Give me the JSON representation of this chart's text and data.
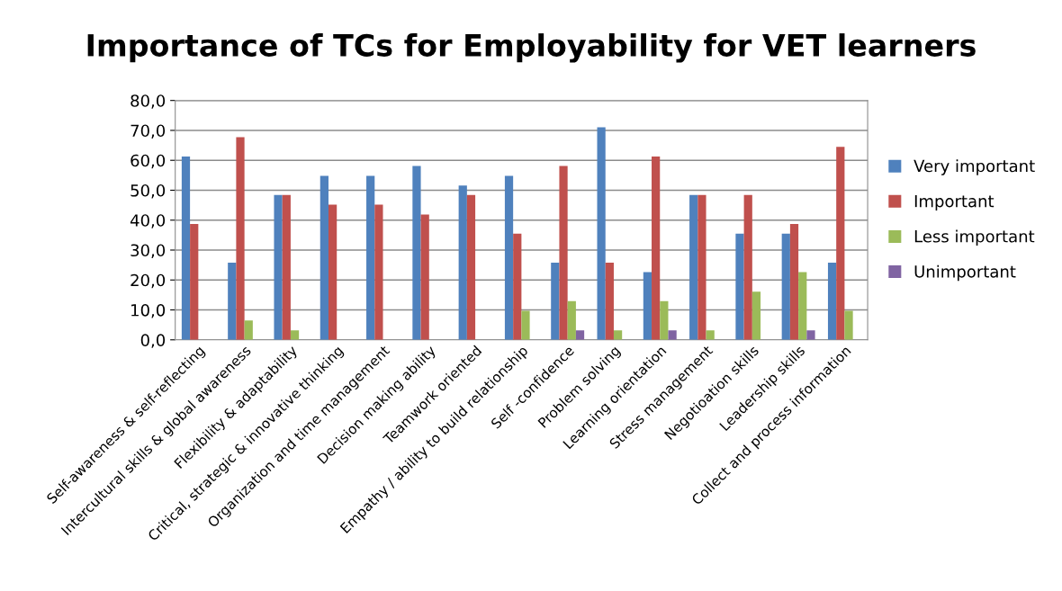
{
  "chart_data": {
    "type": "bar",
    "title": "Importance of TCs for Employability for VET learners",
    "categories": [
      "Self-awareness & self-reflecting",
      "Intercultural skills & global awareness",
      "Flexibility & adaptability",
      "Critical, strategic & innovative thinking",
      "Organization and time management",
      "Decision making ability",
      "Teamwork oriented",
      "Empathy / ability to build relationship",
      "Self -confidence",
      "Problem solving",
      "Learning orientation",
      "Stress management",
      "Negotioation skills",
      "Leadership skills",
      "Collect and process information"
    ],
    "series": [
      {
        "name": "Very important",
        "color": "#4f81bd",
        "values": [
          61.3,
          25.8,
          48.4,
          54.8,
          54.8,
          58.1,
          51.6,
          54.8,
          25.8,
          71.0,
          22.6,
          48.4,
          35.5,
          35.5,
          25.8
        ]
      },
      {
        "name": "Important",
        "color": "#c0504d",
        "values": [
          38.7,
          67.7,
          48.4,
          45.2,
          45.2,
          41.9,
          48.4,
          35.5,
          58.1,
          25.8,
          61.3,
          48.4,
          48.4,
          38.7,
          64.5
        ]
      },
      {
        "name": "Less important",
        "color": "#9bbb59",
        "values": [
          null,
          6.5,
          3.2,
          null,
          null,
          null,
          null,
          9.7,
          12.9,
          3.2,
          12.9,
          3.2,
          16.1,
          22.6,
          9.7
        ]
      },
      {
        "name": "Unimportant",
        "color": "#8064a2",
        "values": [
          null,
          null,
          null,
          null,
          null,
          null,
          null,
          null,
          3.2,
          null,
          3.2,
          null,
          null,
          3.2,
          null
        ]
      }
    ],
    "ylim": [
      0,
      80
    ],
    "yticks": [
      {
        "value": 0,
        "label": "0,0"
      },
      {
        "value": 10,
        "label": "10,0"
      },
      {
        "value": 20,
        "label": "20,0"
      },
      {
        "value": 30,
        "label": "30,0"
      },
      {
        "value": 40,
        "label": "40,0"
      },
      {
        "value": 50,
        "label": "50,0"
      },
      {
        "value": 60,
        "label": "60,0"
      },
      {
        "value": 70,
        "label": "70,0"
      },
      {
        "value": 80,
        "label": "80,0"
      }
    ],
    "grid": "y",
    "legend": "right"
  }
}
